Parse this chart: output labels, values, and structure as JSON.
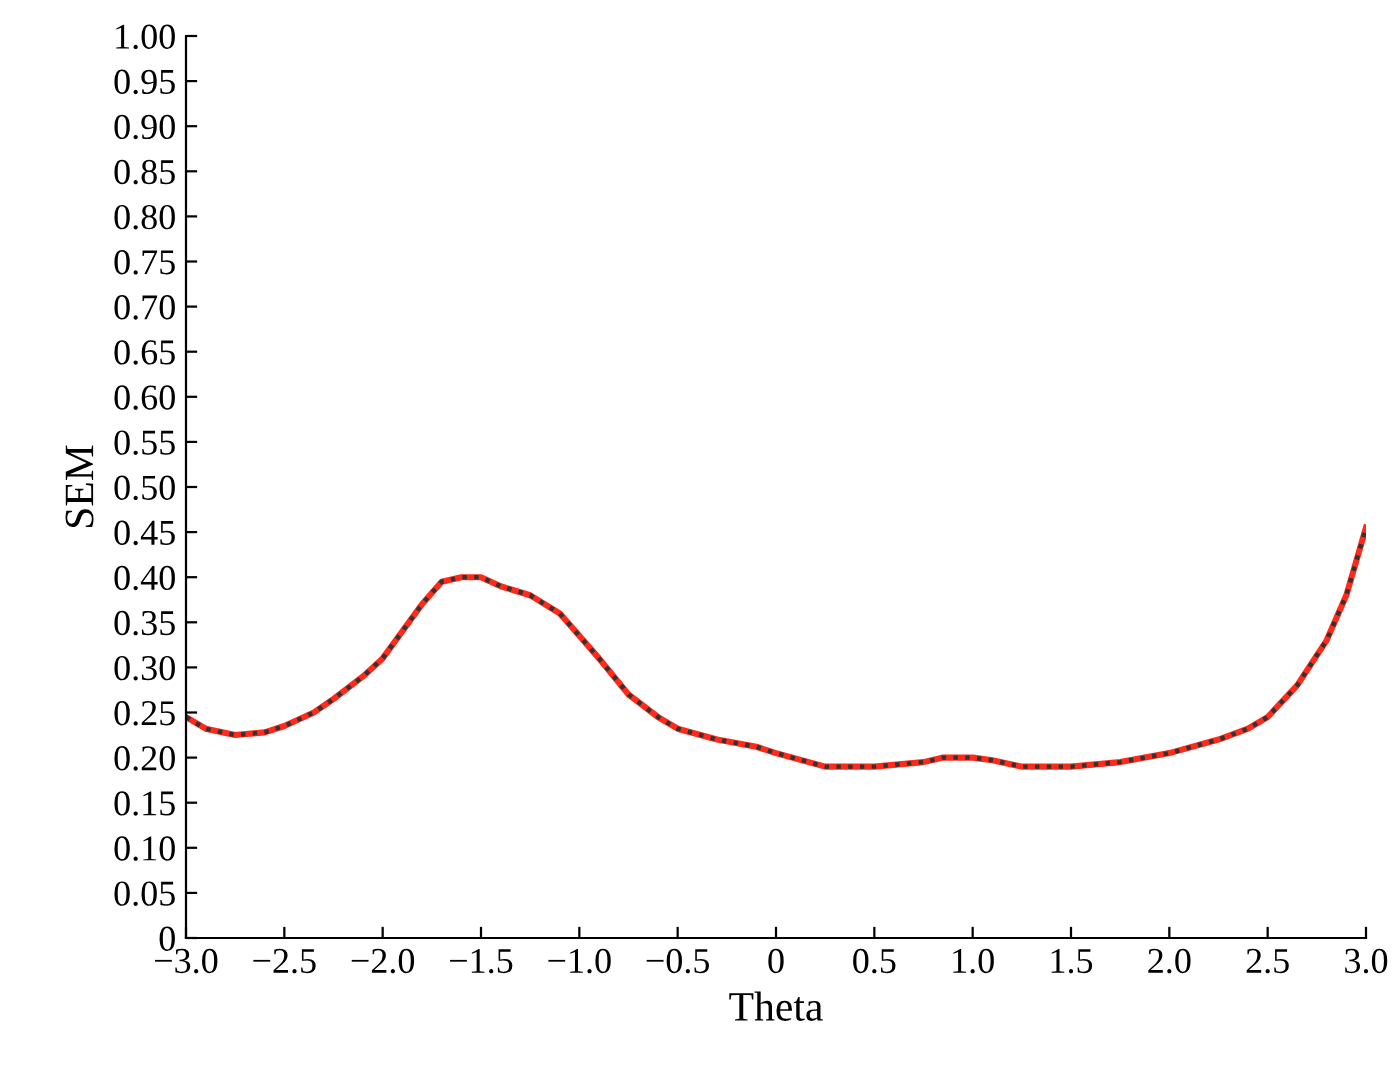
{
  "chart_data": {
    "type": "line",
    "xlabel": "Theta",
    "ylabel": "SEM",
    "x": [
      -3.0,
      -2.9,
      -2.75,
      -2.6,
      -2.5,
      -2.35,
      -2.25,
      -2.1,
      -2.0,
      -1.9,
      -1.8,
      -1.7,
      -1.6,
      -1.5,
      -1.4,
      -1.25,
      -1.1,
      -1.0,
      -0.9,
      -0.75,
      -0.6,
      -0.5,
      -0.3,
      -0.1,
      0.0,
      0.25,
      0.5,
      0.75,
      0.85,
      1.0,
      1.1,
      1.25,
      1.5,
      1.75,
      2.0,
      2.25,
      2.4,
      2.5,
      2.65,
      2.8,
      2.9,
      3.0
    ],
    "series": [
      {
        "color": "#ff2a1a",
        "line_style": "solid",
        "values": [
          0.245,
          0.232,
          0.225,
          0.228,
          0.235,
          0.25,
          0.265,
          0.29,
          0.31,
          0.34,
          0.37,
          0.395,
          0.4,
          0.4,
          0.39,
          0.38,
          0.36,
          0.335,
          0.31,
          0.27,
          0.245,
          0.232,
          0.22,
          0.212,
          0.205,
          0.19,
          0.19,
          0.195,
          0.2,
          0.2,
          0.197,
          0.19,
          0.19,
          0.195,
          0.205,
          0.22,
          0.232,
          0.245,
          0.28,
          0.33,
          0.38,
          0.455
        ]
      },
      {
        "color": "#333333",
        "line_style": "dotted",
        "values": [
          0.245,
          0.232,
          0.225,
          0.228,
          0.235,
          0.25,
          0.265,
          0.29,
          0.31,
          0.34,
          0.37,
          0.395,
          0.4,
          0.4,
          0.39,
          0.38,
          0.36,
          0.335,
          0.31,
          0.27,
          0.245,
          0.232,
          0.22,
          0.212,
          0.205,
          0.19,
          0.19,
          0.195,
          0.2,
          0.2,
          0.197,
          0.19,
          0.19,
          0.195,
          0.205,
          0.22,
          0.232,
          0.245,
          0.28,
          0.33,
          0.38,
          0.455
        ]
      }
    ],
    "xlim": [
      -3.0,
      3.0
    ],
    "xticks": [
      {
        "value": -3,
        "label": "−3.0"
      },
      {
        "value": -2.5,
        "label": "−2.5"
      },
      {
        "value": -2,
        "label": "−2.0"
      },
      {
        "value": -1.5,
        "label": "−1.5"
      },
      {
        "value": -1,
        "label": "−1.0"
      },
      {
        "value": -0.5,
        "label": "−0.5"
      },
      0,
      0.5,
      {
        "value": 1,
        "label": "1.0"
      },
      1.5,
      {
        "value": 2,
        "label": "2.0"
      },
      2.5,
      {
        "value": 3,
        "label": "3.0"
      }
    ],
    "ylim": [
      0,
      1.0
    ],
    "yticks": [
      0,
      0.05,
      {
        "value": 0.1,
        "label": "0.10"
      },
      0.15,
      {
        "value": 0.2,
        "label": "0.20"
      },
      0.25,
      {
        "value": 0.3,
        "label": "0.30"
      },
      0.35,
      {
        "value": 0.4,
        "label": "0.40"
      },
      0.45,
      {
        "value": 0.5,
        "label": "0.50"
      },
      0.55,
      {
        "value": 0.6,
        "label": "0.60"
      },
      0.65,
      {
        "value": 0.7,
        "label": "0.70"
      },
      0.75,
      {
        "value": 0.8,
        "label": "0.80"
      },
      0.85,
      {
        "value": 0.9,
        "label": "0.90"
      },
      0.95,
      {
        "value": 1,
        "label": "1.00"
      }
    ],
    "grid": false
  }
}
